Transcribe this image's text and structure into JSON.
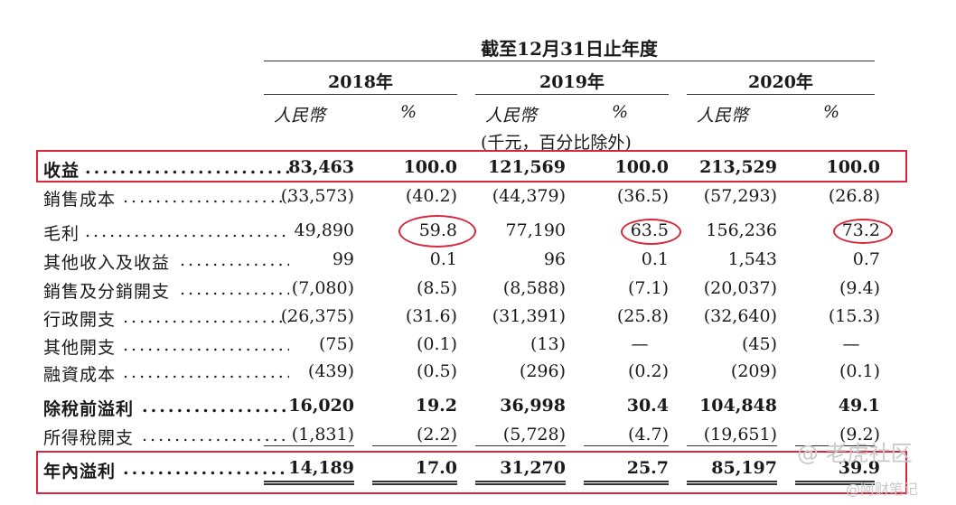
{
  "header": {
    "period": "截至12月31日止年度",
    "years": [
      "2018年",
      "2019年",
      "2020年"
    ],
    "currency": "人民幣",
    "percent": "%",
    "unit_note": "(千元，百分比除外)"
  },
  "rows": [
    {
      "label": "收益",
      "bold": true,
      "v": [
        "83,463",
        "100.0",
        "121,569",
        "100.0",
        "213,529",
        "100.0"
      ]
    },
    {
      "label": "銷售成本",
      "bold": false,
      "v": [
        "(33,573)",
        "(40.2)",
        "(44,379)",
        "(36.5)",
        "(57,293)",
        "(26.8)"
      ]
    },
    {
      "label": "毛利",
      "bold": false,
      "v": [
        "49,890",
        "59.8",
        "77,190",
        "63.5",
        "156,236",
        "73.2"
      ]
    },
    {
      "label": "其他收入及收益",
      "bold": false,
      "v": [
        "99",
        "0.1",
        "96",
        "0.1",
        "1,543",
        "0.7"
      ]
    },
    {
      "label": "銷售及分銷開支",
      "bold": false,
      "v": [
        "(7,080)",
        "(8.5)",
        "(8,588)",
        "(7.1)",
        "(20,037)",
        "(9.4)"
      ]
    },
    {
      "label": "行政開支",
      "bold": false,
      "v": [
        "(26,375)",
        "(31.6)",
        "(31,391)",
        "(25.8)",
        "(32,640)",
        "(15.3)"
      ]
    },
    {
      "label": "其他開支",
      "bold": false,
      "v": [
        "(75)",
        "(0.1)",
        "(13)",
        "—",
        "(45)",
        "—"
      ]
    },
    {
      "label": "融資成本",
      "bold": false,
      "v": [
        "(439)",
        "(0.5)",
        "(296)",
        "(0.2)",
        "(209)",
        "(0.1)"
      ]
    },
    {
      "label": "除稅前溢利",
      "bold": true,
      "v": [
        "16,020",
        "19.2",
        "36,998",
        "30.4",
        "104,848",
        "49.1"
      ]
    },
    {
      "label": "所得稅開支",
      "bold": false,
      "v": [
        "(1,831)",
        "(2.2)",
        "(5,728)",
        "(4.7)",
        "(19,651)",
        "(9.2)"
      ]
    },
    {
      "label": "年內溢利",
      "bold": true,
      "v": [
        "14,189",
        "17.0",
        "31,270",
        "25.7",
        "85,197",
        "39.9"
      ]
    }
  ],
  "watermark": {
    "line1": "@ 老虎社区",
    "line2": "@阿财笔记"
  },
  "colors": {
    "highlight": "#d9263c",
    "text": "#1a1a1a"
  }
}
